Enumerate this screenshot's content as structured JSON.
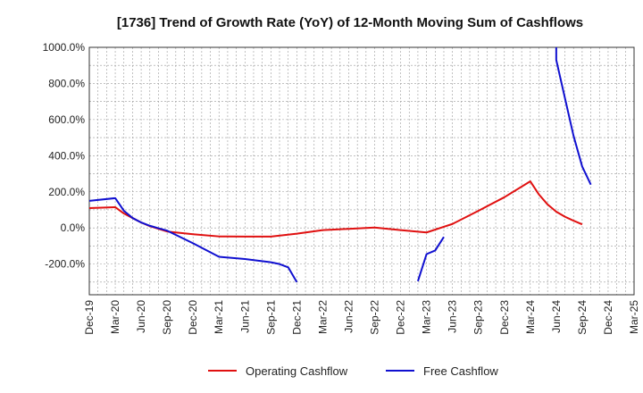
{
  "chart_data": {
    "type": "line",
    "title": "[1736]  Trend of Growth Rate (YoY) of 12-Month Moving Sum of Cashflows",
    "xlabel": "",
    "ylabel": "",
    "ylim": [
      -370,
      1000
    ],
    "y_ticks": [
      1000,
      800,
      600,
      400,
      200,
      0,
      -200
    ],
    "y_tick_labels": [
      "1000.0%",
      "800.0%",
      "600.0%",
      "400.0%",
      "200.0%",
      "0.0%",
      "-200.0%"
    ],
    "x_range": [
      "2019-12",
      "2025-03"
    ],
    "x_tick_labels": [
      "Dec-19",
      "Mar-20",
      "Jun-20",
      "Sep-20",
      "Dec-20",
      "Mar-21",
      "Jun-21",
      "Sep-21",
      "Dec-21",
      "Mar-22",
      "Jun-22",
      "Sep-22",
      "Dec-22",
      "Mar-23",
      "Jun-23",
      "Sep-23",
      "Dec-23",
      "Mar-24",
      "Jun-24",
      "Sep-24",
      "Dec-24",
      "Mar-25"
    ],
    "grid": true,
    "legend_position": "bottom",
    "series": [
      {
        "name": "Operating Cashflow",
        "color": "#e01010",
        "points": [
          [
            "2019-12",
            110
          ],
          [
            "2020-03",
            115
          ],
          [
            "2020-04",
            80
          ],
          [
            "2020-05",
            55
          ],
          [
            "2020-06",
            30
          ],
          [
            "2020-07",
            10
          ],
          [
            "2020-08",
            -5
          ],
          [
            "2020-09",
            -20
          ],
          [
            "2020-12",
            -35
          ],
          [
            "2021-03",
            -47
          ],
          [
            "2021-06",
            -48
          ],
          [
            "2021-09",
            -48
          ],
          [
            "2021-12",
            -32
          ],
          [
            "2022-03",
            -12
          ],
          [
            "2022-06",
            -5
          ],
          [
            "2022-09",
            2
          ],
          [
            "2022-12",
            -12
          ],
          [
            "2023-03",
            -25
          ],
          [
            "2023-06",
            22
          ],
          [
            "2023-09",
            95
          ],
          [
            "2023-12",
            170
          ],
          [
            "2024-03",
            258
          ],
          [
            "2024-04",
            185
          ],
          [
            "2024-05",
            130
          ],
          [
            "2024-06",
            90
          ],
          [
            "2024-07",
            62
          ],
          [
            "2024-08",
            40
          ],
          [
            "2024-09",
            20
          ]
        ]
      },
      {
        "name": "Free Cashflow",
        "color": "#1010d0",
        "segments": [
          [
            [
              "2019-12",
              150
            ],
            [
              "2020-03",
              165
            ],
            [
              "2020-04",
              95
            ],
            [
              "2020-05",
              55
            ],
            [
              "2020-06",
              30
            ],
            [
              "2020-07",
              12
            ],
            [
              "2020-08",
              -2
            ],
            [
              "2020-09",
              -15
            ],
            [
              "2020-12",
              -85
            ],
            [
              "2021-03",
              -160
            ],
            [
              "2021-06",
              -172
            ],
            [
              "2021-09",
              -190
            ],
            [
              "2021-10",
              -200
            ],
            [
              "2021-11",
              -218
            ],
            [
              "2021-12",
              -300
            ]
          ],
          [
            [
              "2023-02",
              -295
            ],
            [
              "2023-03",
              -145
            ],
            [
              "2023-04",
              -125
            ],
            [
              "2023-05",
              -50
            ]
          ],
          [
            [
              "2024-06",
              1000
            ],
            [
              "2024-06",
              930
            ],
            [
              "2024-07",
              720
            ],
            [
              "2024-08",
              510
            ],
            [
              "2024-09",
              340
            ],
            [
              "2024-10",
              240
            ]
          ]
        ]
      }
    ]
  }
}
